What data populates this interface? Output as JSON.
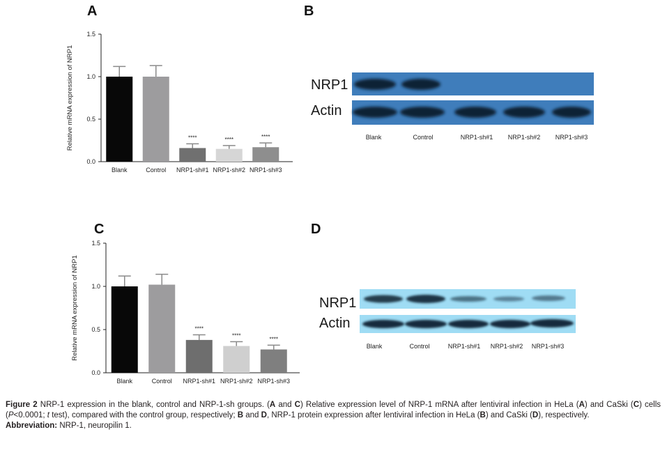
{
  "panels": {
    "A": "A",
    "B": "B",
    "C": "C",
    "D": "D"
  },
  "chart_data": [
    {
      "type": "bar",
      "panel": "A",
      "categories": [
        "Blank",
        "Control",
        "NRP1-sh#1",
        "NRP1-sh#2",
        "NRP1-sh#3"
      ],
      "values": [
        1.0,
        1.0,
        0.16,
        0.15,
        0.17
      ],
      "errors": [
        0.12,
        0.13,
        0.05,
        0.04,
        0.05
      ],
      "significance": [
        "",
        "",
        "****",
        "****",
        "****"
      ],
      "bar_colors": [
        "#080808",
        "#9d9c9e",
        "#707070",
        "#d6d6d6",
        "#8e8e8e"
      ],
      "ylabel": "Relative mRNA expression of NRP1",
      "ylim": [
        0,
        1.5
      ],
      "yticks": [
        "0.0",
        "0.5",
        "1.0",
        "1.5"
      ],
      "grid": false
    },
    {
      "type": "bar",
      "panel": "C",
      "categories": [
        "Blank",
        "Control",
        "NRP1-sh#1",
        "NRP1-sh#2",
        "NRP1-sh#3"
      ],
      "values": [
        1.0,
        1.02,
        0.38,
        0.31,
        0.27
      ],
      "errors": [
        0.12,
        0.12,
        0.06,
        0.05,
        0.05
      ],
      "significance": [
        "",
        "",
        "****",
        "****",
        "****"
      ],
      "bar_colors": [
        "#080808",
        "#9d9c9e",
        "#6e6e6e",
        "#cfcfcf",
        "#7f7f7f"
      ],
      "ylabel": "Relative mRNA expression of NRP1",
      "ylim": [
        0,
        1.5
      ],
      "yticks": [
        "0.0",
        "0.5",
        "1.0",
        "1.5"
      ],
      "grid": false
    }
  ],
  "blot_B": {
    "rows": [
      "NRP1",
      "Actin"
    ],
    "lanes": [
      "Blank",
      "Control",
      "NRP1-sh#1",
      "NRP1-sh#2",
      "NRP1-sh#3"
    ],
    "background": "#3f7dbb",
    "band_color": "#0e2336"
  },
  "blot_D": {
    "rows": [
      "NRP1",
      "Actin"
    ],
    "lanes": [
      "Blank",
      "Control",
      "NRP1-sh#1",
      "NRP1-sh#2",
      "NRP1-sh#3"
    ],
    "background": "#9fdcf4",
    "band_color": "#142c3c"
  },
  "caption": {
    "figure_label": "Figure 2",
    "title": "NRP-1 expression in the blank, control and NRP-1-sh groups.",
    "and1": "A",
    "and2": "C",
    "text1": "Relative expression level of NRP-1 mRNA after lentiviral infection in HeLa (",
    "A": "A",
    "text2": ") and CaSki (",
    "C": "C",
    "text3": ") cells (",
    "P": "P",
    "text4": "<0.0001; ",
    "t": "t",
    "text5": " test), compared with the control group, respectively;",
    "B1": "B",
    "and_word": "and",
    "D1": "D",
    "text6": ", NRP-1 protein expression after lentiviral infection in HeLa (",
    "B2": "B",
    "text7": ") and CaSki (",
    "D2": "D",
    "text8": "), respectively.",
    "abbr_label": "Abbreviation:",
    "abbr_text": "NRP-1, neuropilin 1."
  }
}
